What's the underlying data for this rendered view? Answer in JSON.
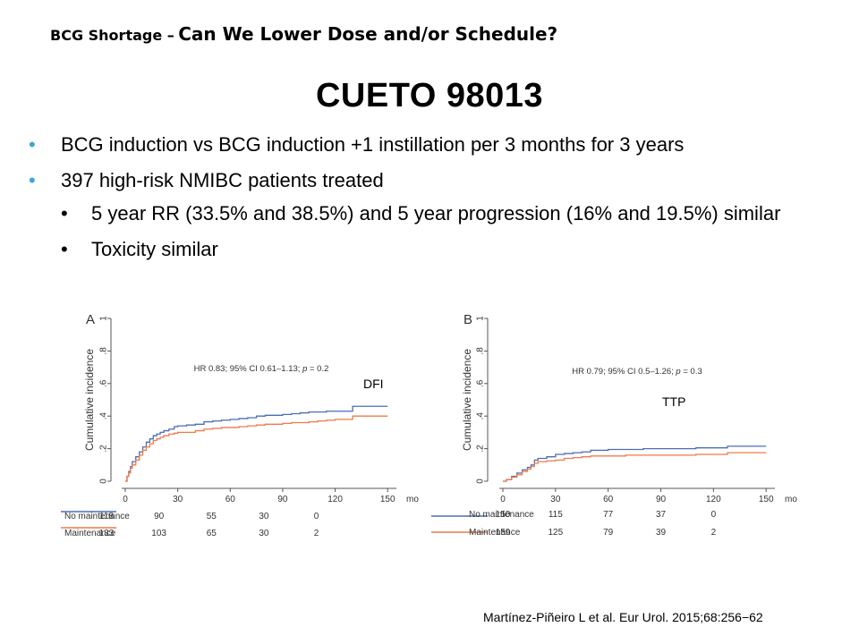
{
  "header": {
    "topic_prefix": "BCG Shortage –",
    "topic_main": "Can We Lower Dose and/or Schedule?",
    "title": "CUETO 98013"
  },
  "bullets": [
    {
      "text": "BCG induction vs BCG induction +1 instillation per 3 months for 3 years"
    },
    {
      "text": "397 high-risk NMIBC patients treated",
      "sub": [
        {
          "text": "5 year RR (33.5% and 38.5%) and 5 year progression (16% and 19.5%) similar"
        },
        {
          "text": "Toxicity similar"
        }
      ]
    }
  ],
  "citation": "Martínez-Piñeiro L et al. Eur Urol. 2015;68:256−62",
  "colors": {
    "no_maintenance": "#4a6fb5",
    "maintenance": "#ee7a4a",
    "bullet": "#3aa6d9"
  },
  "chart_data": [
    {
      "type": "line",
      "panel": "A",
      "label": "DFI",
      "annotation": "HR 0.83; 95% CI 0.61–1.13; p = 0.2",
      "ylabel": "Cumulative incidence",
      "xunit": "mo",
      "x_ticks": [
        0,
        30,
        60,
        90,
        120,
        150
      ],
      "y_ticks": [
        "0",
        ".2",
        ".4",
        ".6",
        ".8",
        "1"
      ],
      "xlim": [
        0,
        155
      ],
      "ylim": [
        0,
        1
      ],
      "series": [
        {
          "name": "No maintenance",
          "x": [
            0,
            1,
            2,
            3,
            4,
            6,
            8,
            10,
            12,
            14,
            16,
            18,
            20,
            22,
            25,
            28,
            30,
            35,
            40,
            45,
            50,
            55,
            60,
            65,
            70,
            75,
            80,
            85,
            90,
            95,
            100,
            105,
            110,
            115,
            120,
            125,
            130,
            135,
            140,
            145,
            150
          ],
          "y": [
            0,
            0.03,
            0.06,
            0.09,
            0.12,
            0.15,
            0.18,
            0.21,
            0.24,
            0.26,
            0.28,
            0.29,
            0.3,
            0.31,
            0.32,
            0.335,
            0.34,
            0.345,
            0.35,
            0.365,
            0.37,
            0.375,
            0.38,
            0.385,
            0.39,
            0.4,
            0.405,
            0.405,
            0.41,
            0.415,
            0.42,
            0.425,
            0.425,
            0.43,
            0.43,
            0.43,
            0.46,
            0.46,
            0.46,
            0.46,
            0.46
          ],
          "at_risk": [
            118,
            90,
            55,
            30,
            0
          ]
        },
        {
          "name": "Maintenance",
          "x": [
            0,
            1,
            2,
            3,
            4,
            6,
            8,
            10,
            12,
            14,
            16,
            18,
            20,
            22,
            25,
            28,
            30,
            35,
            40,
            45,
            50,
            55,
            60,
            65,
            70,
            75,
            80,
            85,
            90,
            95,
            100,
            105,
            110,
            115,
            120,
            125,
            130,
            135,
            140,
            145,
            150
          ],
          "y": [
            0,
            0.03,
            0.05,
            0.08,
            0.1,
            0.13,
            0.16,
            0.19,
            0.21,
            0.23,
            0.25,
            0.26,
            0.27,
            0.28,
            0.29,
            0.295,
            0.3,
            0.3,
            0.31,
            0.32,
            0.325,
            0.33,
            0.33,
            0.335,
            0.34,
            0.345,
            0.35,
            0.35,
            0.355,
            0.36,
            0.36,
            0.365,
            0.37,
            0.375,
            0.38,
            0.38,
            0.4,
            0.4,
            0.4,
            0.4,
            0.4
          ],
          "at_risk": [
            133,
            103,
            65,
            30,
            2
          ]
        }
      ]
    },
    {
      "type": "line",
      "panel": "B",
      "label": "TTP",
      "annotation": "HR 0.79; 95% CI 0.5–1.26; p = 0.3",
      "ylabel": "Cumulative incidence",
      "xunit": "mo",
      "x_ticks": [
        0,
        30,
        60,
        90,
        120,
        150
      ],
      "y_ticks": [
        "0",
        ".2",
        ".4",
        ".6",
        ".8",
        "1"
      ],
      "xlim": [
        0,
        155
      ],
      "ylim": [
        0,
        1
      ],
      "series": [
        {
          "name": "No maintenance",
          "x": [
            0,
            2,
            5,
            8,
            11,
            14,
            16,
            18,
            20,
            25,
            30,
            35,
            40,
            45,
            50,
            60,
            70,
            80,
            90,
            100,
            110,
            120,
            128,
            135,
            145,
            150
          ],
          "y": [
            0,
            0.01,
            0.03,
            0.05,
            0.07,
            0.085,
            0.1,
            0.13,
            0.14,
            0.15,
            0.165,
            0.17,
            0.175,
            0.18,
            0.19,
            0.195,
            0.195,
            0.2,
            0.2,
            0.2,
            0.205,
            0.205,
            0.215,
            0.215,
            0.215,
            0.215
          ],
          "at_risk": [
            150,
            115,
            77,
            37,
            0
          ]
        },
        {
          "name": "Maintenance",
          "x": [
            0,
            2,
            5,
            8,
            11,
            14,
            16,
            18,
            20,
            25,
            30,
            35,
            40,
            45,
            50,
            60,
            70,
            80,
            90,
            100,
            110,
            120,
            128,
            135,
            145,
            150
          ],
          "y": [
            0,
            0.01,
            0.025,
            0.04,
            0.06,
            0.075,
            0.09,
            0.11,
            0.12,
            0.125,
            0.13,
            0.14,
            0.145,
            0.15,
            0.155,
            0.155,
            0.16,
            0.16,
            0.16,
            0.16,
            0.165,
            0.165,
            0.175,
            0.175,
            0.175,
            0.175
          ],
          "at_risk": [
            159,
            125,
            79,
            39,
            2
          ]
        }
      ]
    }
  ]
}
